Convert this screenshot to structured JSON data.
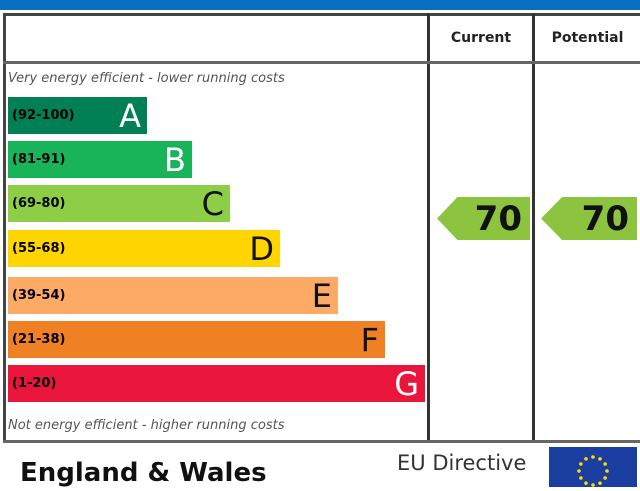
{
  "header": {
    "current_label": "Current",
    "potential_label": "Potential"
  },
  "notes": {
    "top": "Very energy efficient - lower running costs",
    "bottom": "Not energy efficient - higher running costs"
  },
  "footer": {
    "region": "England & Wales",
    "directive": "EU Directive"
  },
  "chart_data": {
    "type": "bar",
    "bands": [
      {
        "range": "(92-100)",
        "letter": "A",
        "color": "#008054"
      },
      {
        "range": "(81-91)",
        "letter": "B",
        "color": "#19b459"
      },
      {
        "range": "(69-80)",
        "letter": "C",
        "color": "#8dce46"
      },
      {
        "range": "(55-68)",
        "letter": "D",
        "color": "#ffd500"
      },
      {
        "range": "(39-54)",
        "letter": "E",
        "color": "#fcaa65"
      },
      {
        "range": "(21-38)",
        "letter": "F",
        "color": "#ef8023"
      },
      {
        "range": "(1-20)",
        "letter": "G",
        "color": "#e9153b"
      }
    ],
    "current": 70,
    "potential": 70,
    "rating_color": "#8cc43f"
  }
}
